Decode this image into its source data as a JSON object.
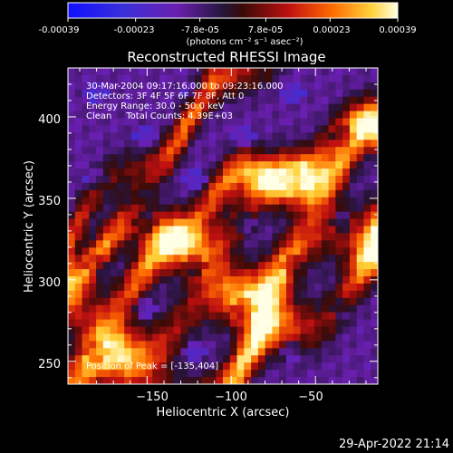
{
  "colorbar": {
    "tick_labels": [
      "-0.00039",
      "-0.00023",
      "-7.8e-05",
      "7.8e-05",
      "0.00023",
      "0.00039"
    ],
    "unit_label": "(photons cm⁻² s⁻¹ asec⁻²)",
    "range": [
      -0.00039,
      0.00039
    ]
  },
  "chart_data": {
    "type": "heatmap",
    "title": "Reconstructed RHESSI Image",
    "xlabel": "Heliocentric X (arcsec)",
    "ylabel": "Heliocentric Y (arcsec)",
    "xlim": [
      -197,
      -13
    ],
    "ylim": [
      236,
      430
    ],
    "x_ticks": [
      -150,
      -100,
      -50
    ],
    "y_ticks": [
      250,
      300,
      350,
      400
    ],
    "x_tick_labels": [
      "−150",
      "−100",
      "−50"
    ],
    "y_tick_labels": [
      "250",
      "300",
      "350",
      "400"
    ],
    "colormap": "blue-purple-red-yellow-white",
    "peak": [
      -135,
      404
    ],
    "info_lines": [
      "30-Mar-2004 09:17:16.000 to 09:23:16.000",
      "Detectors: 3F 4F 5F 6F 7F 8F, Att 0",
      "Energy Range: 30.0 - 50.0 keV",
      "Clean     Total Counts: 4.39E+03"
    ],
    "peak_label": "Position of Peak = [-135,404]"
  },
  "footer": {
    "timestamp": "29-Apr-2022 21:14"
  }
}
